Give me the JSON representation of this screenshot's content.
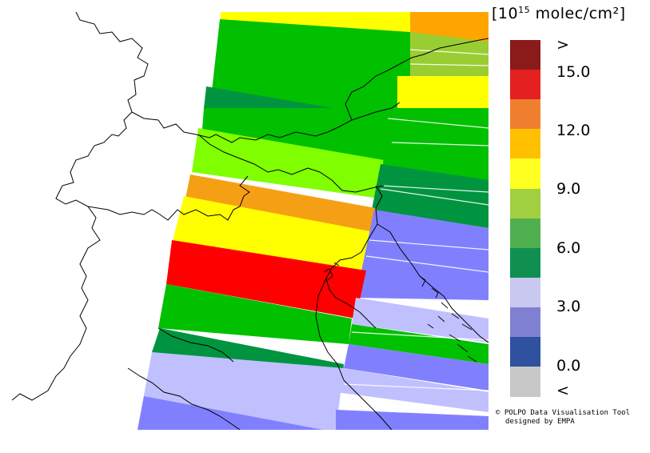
{
  "legend": {
    "unit": "[10¹⁵ molec/cm²]",
    "unit_prefix": "[10",
    "unit_exponent": "15",
    "unit_suffix": " molec/cm²]",
    "labels": [
      ">",
      "15.0",
      "12.0",
      "9.0",
      "6.0",
      "3.0",
      "0.0",
      "<"
    ],
    "colors": [
      "#8b1a1a",
      "#e52020",
      "#f08030",
      "#ffc000",
      "#ffff20",
      "#a0d040",
      "#50b050",
      "#109050",
      "#c8c8f0",
      "#8080d0",
      "#3050a0",
      "#c8c8c8"
    ]
  },
  "credit": {
    "line1": "© POLPO Data Visualisation Tool",
    "line2": "designed by EMPA"
  },
  "map": {
    "field_colors": {
      "red": "#ff0000",
      "orange": "#ffa500",
      "light_orange": "#f5a014",
      "yellow": "#ffff00",
      "lime": "#7fff00",
      "yellowgreen": "#9acd32",
      "green": "#00c000",
      "dark_green": "#009440",
      "light_blue": "#c0c0ff",
      "periwinkle": "#8080ff"
    }
  }
}
